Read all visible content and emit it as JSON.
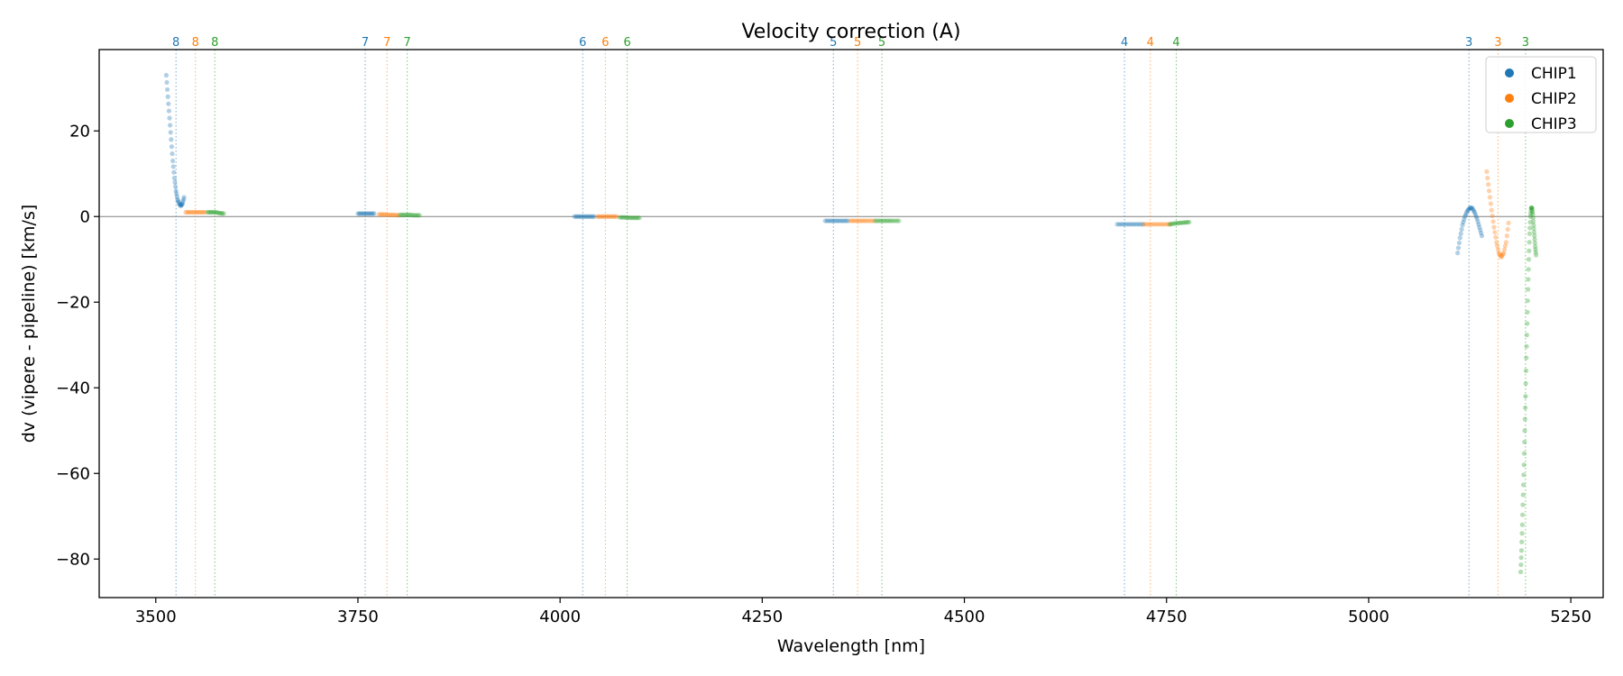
{
  "chart_data": {
    "type": "scatter",
    "title": "Velocity correction (A)",
    "xlabel": "Wavelength [nm]",
    "ylabel": "dv (vipere - pipeline) [km/s]",
    "xlim": [
      3430,
      5290
    ],
    "ylim": [
      -89,
      39
    ],
    "xticks": [
      3500,
      3750,
      4000,
      4250,
      4500,
      4750,
      5000,
      5250
    ],
    "yticks": [
      20,
      0,
      -20,
      -40,
      -60,
      -80
    ],
    "zero_line": true,
    "grid": false,
    "legend_position": "top-right",
    "legend": [
      "CHIP1",
      "CHIP2",
      "CHIP3"
    ],
    "colors": {
      "CHIP1": "#1f77b4",
      "CHIP2": "#ff7f0e",
      "CHIP3": "#2ca02c"
    },
    "order_markers": [
      {
        "series": "CHIP1",
        "order": "8",
        "x": 3525
      },
      {
        "series": "CHIP2",
        "order": "8",
        "x": 3549
      },
      {
        "series": "CHIP3",
        "order": "8",
        "x": 3573
      },
      {
        "series": "CHIP1",
        "order": "7",
        "x": 3759
      },
      {
        "series": "CHIP2",
        "order": "7",
        "x": 3786
      },
      {
        "series": "CHIP3",
        "order": "7",
        "x": 3811
      },
      {
        "series": "CHIP1",
        "order": "6",
        "x": 4028
      },
      {
        "series": "CHIP2",
        "order": "6",
        "x": 4056
      },
      {
        "series": "CHIP3",
        "order": "6",
        "x": 4083
      },
      {
        "series": "CHIP1",
        "order": "5",
        "x": 4338
      },
      {
        "series": "CHIP2",
        "order": "5",
        "x": 4368
      },
      {
        "series": "CHIP3",
        "order": "5",
        "x": 4398
      },
      {
        "series": "CHIP1",
        "order": "4",
        "x": 4698
      },
      {
        "series": "CHIP2",
        "order": "4",
        "x": 4730
      },
      {
        "series": "CHIP3",
        "order": "4",
        "x": 4762
      },
      {
        "series": "CHIP1",
        "order": "3",
        "x": 5124
      },
      {
        "series": "CHIP2",
        "order": "3",
        "x": 5160
      },
      {
        "series": "CHIP3",
        "order": "3",
        "x": 5194
      }
    ],
    "series": [
      {
        "name": "CHIP1",
        "segments": [
          {
            "x": [
              3513,
              3515,
              3517,
              3519,
              3521,
              3523,
              3525,
              3527,
              3529,
              3531,
              3533,
              3535
            ],
            "y": [
              33,
              28,
              23,
              18,
              13,
              9,
              6,
              4,
              3,
              2.5,
              3,
              4.5
            ]
          },
          {
            "x": [
              3750,
              3755,
              3760,
              3765,
              3770
            ],
            "y": [
              0.7,
              0.7,
              0.7,
              0.7,
              0.7
            ]
          },
          {
            "x": [
              4018,
              4024,
              4030,
              4036,
              4042
            ],
            "y": [
              0,
              0,
              0,
              0,
              0
            ]
          },
          {
            "x": [
              4328,
              4335,
              4342,
              4349,
              4356
            ],
            "y": [
              -1,
              -1,
              -1,
              -1,
              -1
            ]
          },
          {
            "x": [
              4689,
              4697,
              4705,
              4713,
              4721
            ],
            "y": [
              -1.8,
              -1.8,
              -1.8,
              -1.8,
              -1.8
            ]
          },
          {
            "x": [
              5110,
              5113,
              5116,
              5119,
              5122,
              5125,
              5128,
              5131,
              5134,
              5137,
              5140
            ],
            "y": [
              -8.5,
              -5,
              -2,
              0,
              1.3,
              2,
              2,
              1,
              -0.5,
              -2.5,
              -4.5
            ]
          }
        ]
      },
      {
        "name": "CHIP2",
        "segments": [
          {
            "x": [
              3537,
              3543,
              3549,
              3555,
              3561
            ],
            "y": [
              1,
              1,
              1,
              1,
              1
            ]
          },
          {
            "x": [
              3776,
              3782,
              3788,
              3794,
              3800
            ],
            "y": [
              0.5,
              0.5,
              0.4,
              0.4,
              0.3
            ]
          },
          {
            "x": [
              4046,
              4052,
              4058,
              4064,
              4070
            ],
            "y": [
              0,
              0,
              0,
              0,
              0
            ]
          },
          {
            "x": [
              4359,
              4366,
              4373,
              4380,
              4388
            ],
            "y": [
              -1,
              -1,
              -1,
              -1,
              -1
            ]
          },
          {
            "x": [
              4722,
              4730,
              4738,
              4746,
              4754
            ],
            "y": [
              -1.8,
              -1.8,
              -1.8,
              -1.8,
              -1.8
            ]
          },
          {
            "x": [
              5146,
              5149,
              5152,
              5155,
              5158,
              5161,
              5164,
              5167,
              5170,
              5173
            ],
            "y": [
              10.5,
              6,
              1.5,
              -2.5,
              -6,
              -8.5,
              -9.5,
              -8.5,
              -6,
              -1.5
            ]
          }
        ]
      },
      {
        "name": "CHIP3",
        "segments": [
          {
            "x": [
              3564,
              3569,
              3574,
              3579,
              3584
            ],
            "y": [
              1,
              1,
              1,
              0.8,
              0.7
            ]
          },
          {
            "x": [
              3802,
              3808,
              3814,
              3820,
              3826
            ],
            "y": [
              0.4,
              0.4,
              0.4,
              0.3,
              0.3
            ]
          },
          {
            "x": [
              4074,
              4080,
              4086,
              4092,
              4098
            ],
            "y": [
              -0.2,
              -0.2,
              -0.3,
              -0.3,
              -0.3
            ]
          },
          {
            "x": [
              4390,
              4397,
              4404,
              4411,
              4419
            ],
            "y": [
              -1,
              -1,
              -1,
              -1,
              -1
            ]
          },
          {
            "x": [
              4754,
              4760,
              4766,
              4772,
              4778
            ],
            "y": [
              -1.8,
              -1.6,
              -1.5,
              -1.4,
              -1.3
            ]
          },
          {
            "x": [
              5188,
              5189,
              5190,
              5191,
              5192,
              5193,
              5194,
              5195,
              5196,
              5197,
              5198,
              5199,
              5200,
              5201,
              5202,
              5203,
              5204,
              5205,
              5206,
              5207
            ],
            "y": [
              -83,
              -78,
              -72,
              -65,
              -58,
              -50,
              -42,
              -33,
              -25,
              -17,
              -10,
              -4,
              0,
              2,
              2,
              0.5,
              -2,
              -4.5,
              -7,
              -9
            ]
          }
        ]
      }
    ]
  }
}
